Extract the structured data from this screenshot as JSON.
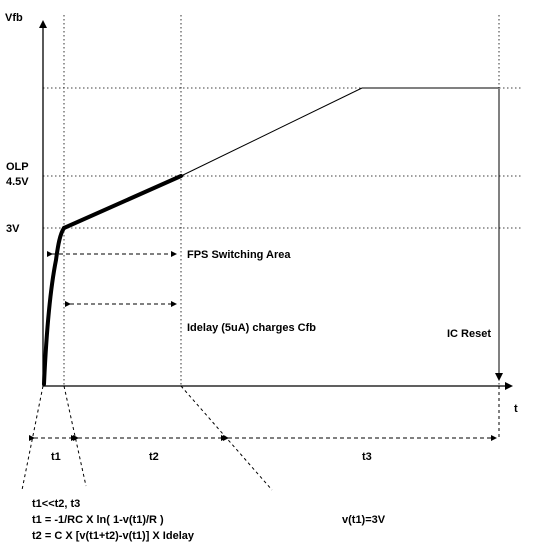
{
  "axes": {
    "y_label": "Vfb",
    "x_label": "t"
  },
  "levels": {
    "olp_line1": "OLP",
    "olp_line2": "4.5V",
    "v3": "3V"
  },
  "annotations": {
    "fps_area": "FPS Switching Area",
    "idelay": "Idelay (5uA) charges Cfb",
    "ic_reset": "IC Reset"
  },
  "intervals": {
    "t1": "t1",
    "t2": "t2",
    "t3": "t3"
  },
  "equations": {
    "line1": "t1<<t2, t3",
    "line2": "t1 = -1/RC X ln( 1-v(t1)/R )",
    "line3": "t2 = C X [v(t1+t2)-v(t1)] X Idelay",
    "vt1": "v(t1)=3V"
  }
}
